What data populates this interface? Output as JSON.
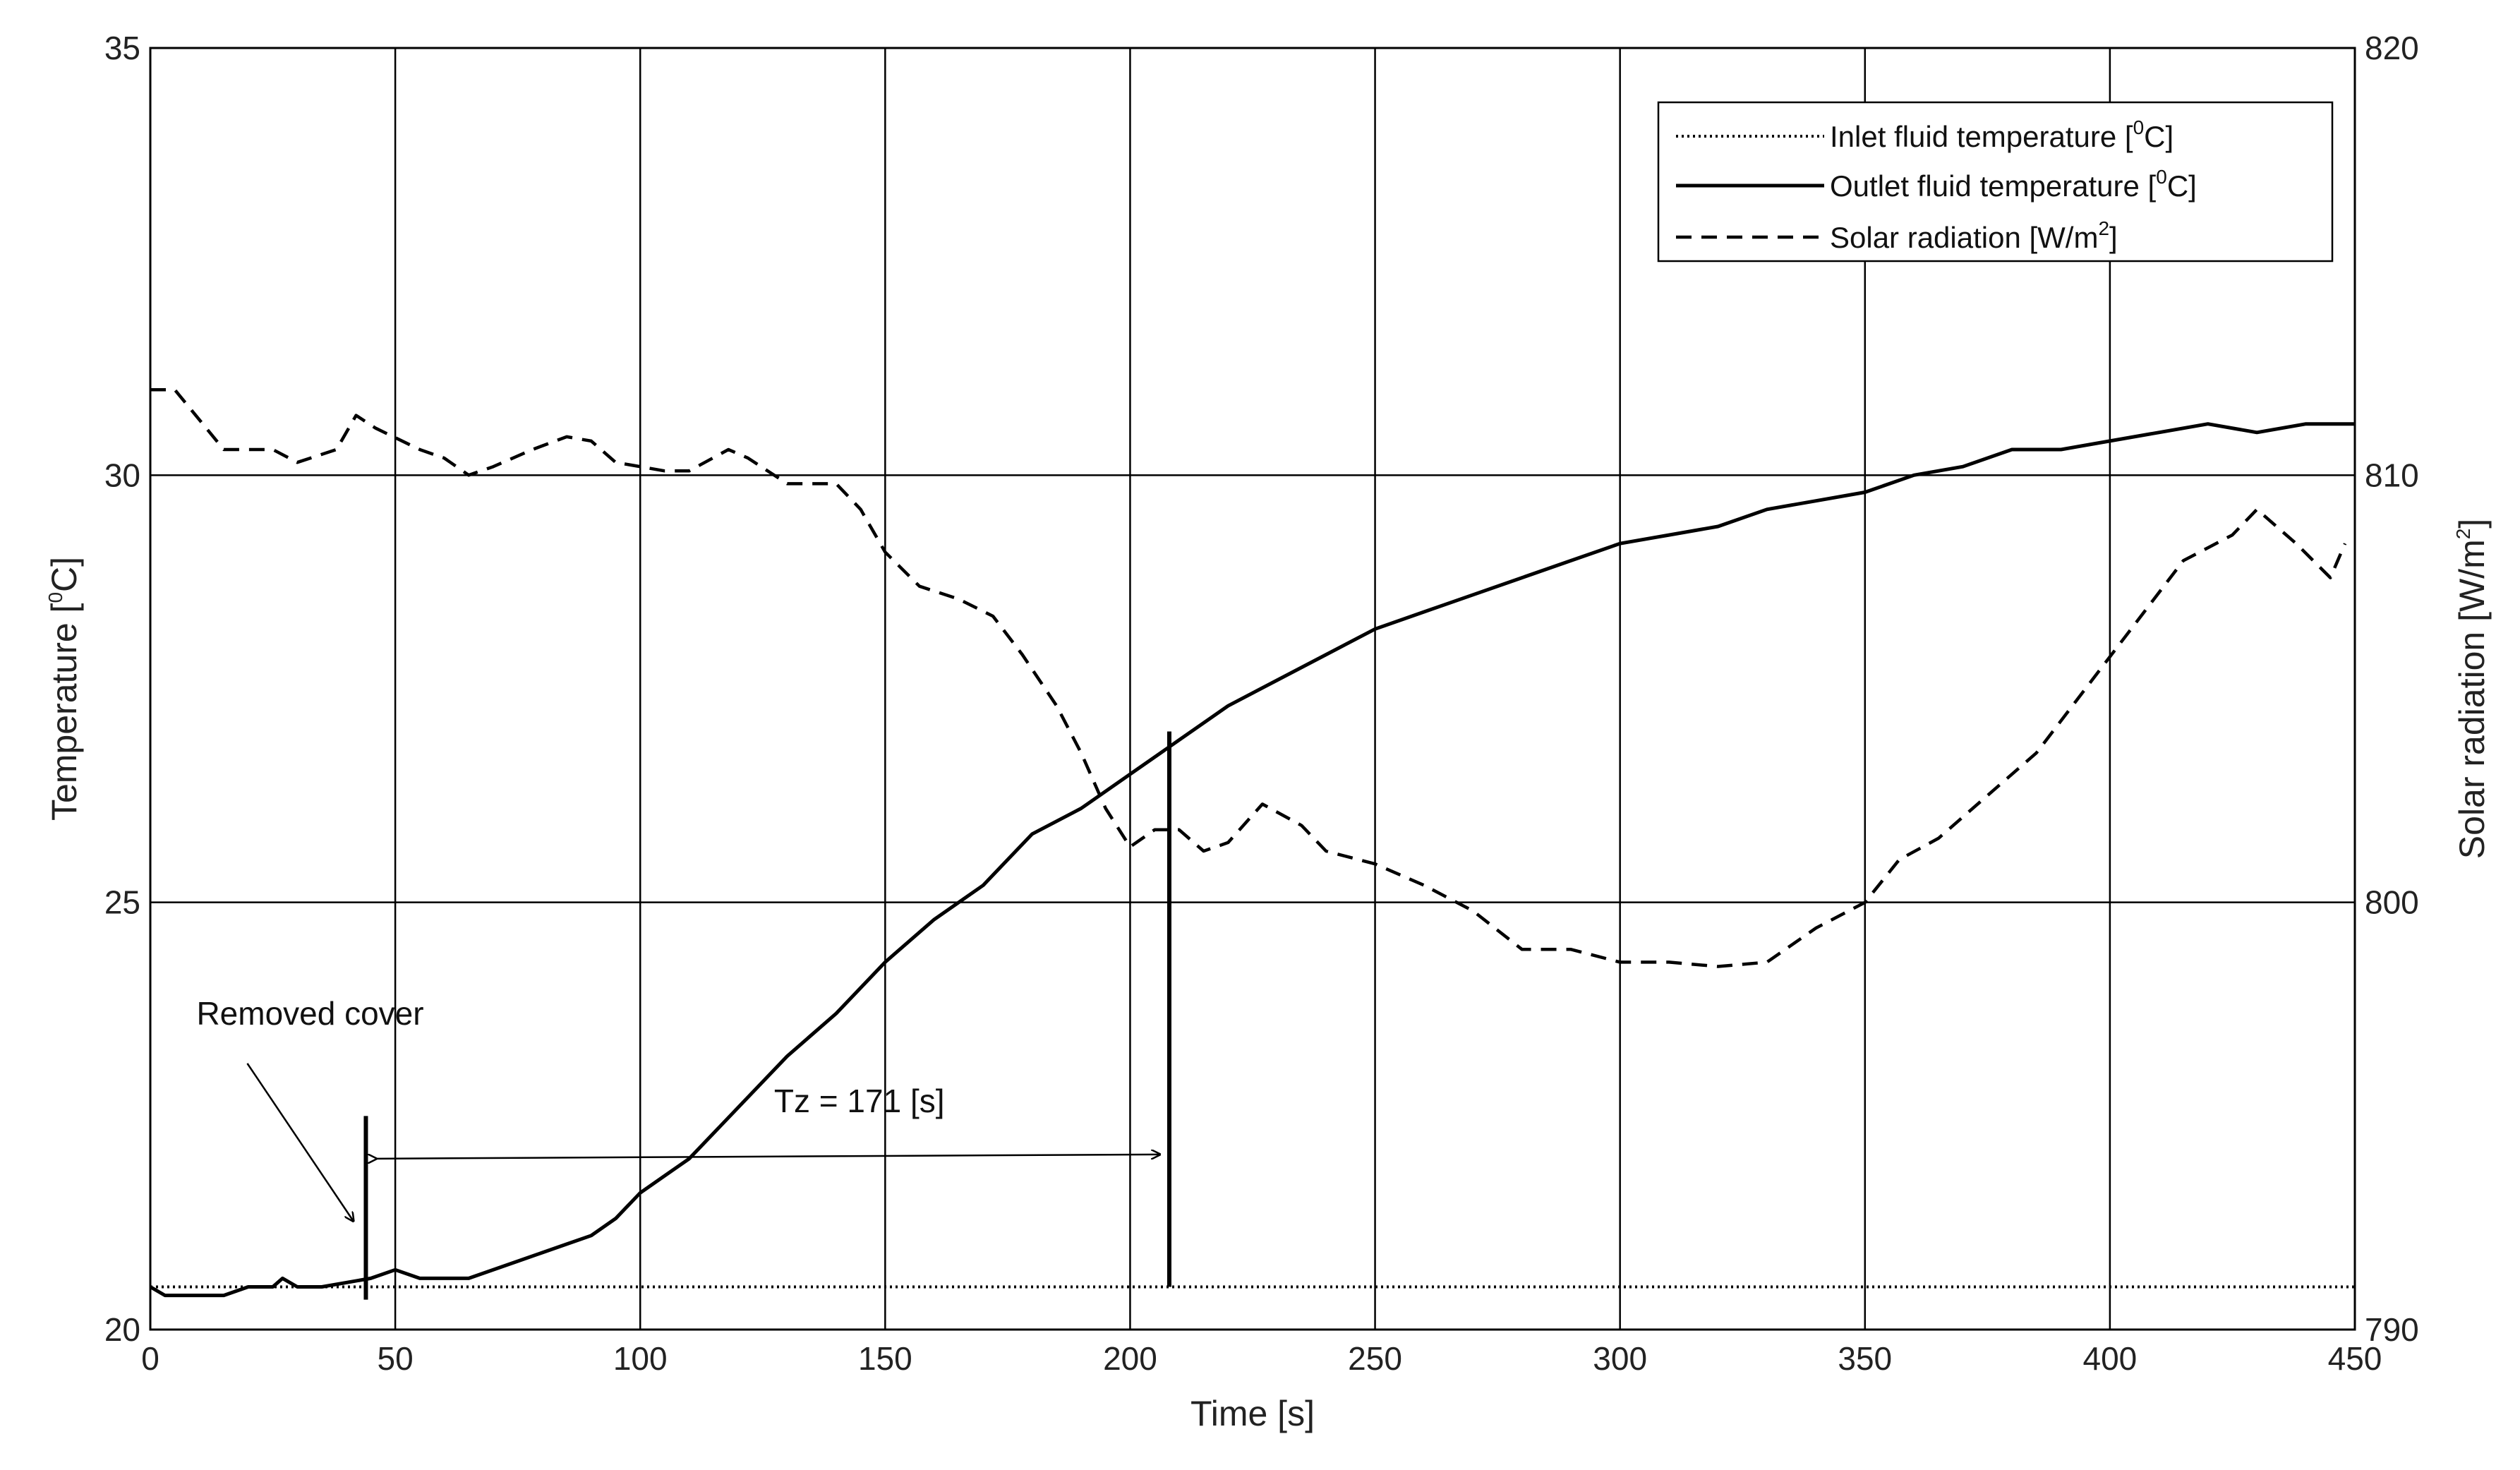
{
  "chart_data": {
    "type": "line",
    "xlabel": "Time [s]",
    "ylabel": {
      "pre": "Temperature [",
      "sup": "0",
      "post": "C]"
    },
    "y2label": {
      "pre": "Solar radiation [W/m",
      "sup": "2",
      "post": "]"
    },
    "xlim": [
      0,
      450
    ],
    "ylim": [
      20,
      35
    ],
    "y2lim": [
      790,
      820
    ],
    "xticks": [
      "0",
      "50",
      "100",
      "150",
      "200",
      "250",
      "300",
      "350",
      "400",
      "450"
    ],
    "yticks": [
      "20",
      "25",
      "30",
      "35"
    ],
    "y2ticks": [
      "790",
      "800",
      "810",
      "820"
    ],
    "grid": true,
    "legend_position": "top-right",
    "series": [
      {
        "name": "Inlet fluid temperature",
        "legend": {
          "pre": "Inlet fluid temperature [",
          "sup": "0",
          "post": "C]"
        },
        "axis": "left",
        "style": "dotted",
        "x": [
          0,
          450
        ],
        "y": [
          20.5,
          20.5
        ]
      },
      {
        "name": "Outlet fluid temperature",
        "legend": {
          "pre": "Outlet fluid temperature [",
          "sup": "0",
          "post": "C]"
        },
        "axis": "left",
        "style": "solid",
        "x": [
          0,
          3,
          15,
          20,
          25,
          27,
          30,
          35,
          45,
          50,
          55,
          65,
          75,
          80,
          85,
          90,
          95,
          100,
          105,
          110,
          120,
          130,
          140,
          150,
          160,
          170,
          180,
          190,
          200,
          210,
          220,
          230,
          240,
          250,
          260,
          270,
          280,
          290,
          300,
          310,
          320,
          330,
          340,
          350,
          360,
          370,
          380,
          390,
          400,
          410,
          420,
          430,
          440,
          450
        ],
        "y": [
          20.5,
          20.4,
          20.4,
          20.5,
          20.5,
          20.6,
          20.5,
          20.5,
          20.6,
          20.7,
          20.6,
          20.6,
          20.8,
          20.9,
          21.0,
          21.1,
          21.3,
          21.6,
          21.8,
          22.0,
          22.6,
          23.2,
          23.7,
          24.3,
          24.8,
          25.2,
          25.8,
          26.1,
          26.5,
          26.9,
          27.3,
          27.6,
          27.9,
          28.2,
          28.4,
          28.6,
          28.8,
          29.0,
          29.2,
          29.3,
          29.4,
          29.6,
          29.7,
          29.8,
          30.0,
          30.1,
          30.3,
          30.3,
          30.4,
          30.5,
          30.6,
          30.5,
          30.6,
          30.6
        ],
        "units": "degC"
      },
      {
        "name": "Solar radiation",
        "legend": {
          "pre": "Solar radiation [W/m",
          "sup": "2",
          "post": "]"
        },
        "axis": "right",
        "style": "dashed",
        "x": [
          0,
          5,
          15,
          25,
          30,
          38,
          42,
          46,
          55,
          60,
          65,
          70,
          78,
          85,
          90,
          95,
          100,
          105,
          110,
          118,
          122,
          130,
          140,
          145,
          150,
          157,
          165,
          172,
          178,
          185,
          190,
          195,
          200,
          205,
          210,
          215,
          220,
          227,
          235,
          240,
          250,
          260,
          265,
          270,
          280,
          290,
          300,
          310,
          320,
          330,
          340,
          350,
          357,
          365,
          375,
          385,
          395,
          405,
          415,
          425,
          430,
          438,
          445,
          448
        ],
        "y": [
          812,
          812,
          810.6,
          810.6,
          810.3,
          810.6,
          811.4,
          811.1,
          810.6,
          810.4,
          810,
          810.2,
          810.6,
          810.9,
          810.8,
          810.3,
          810.2,
          810.1,
          810.1,
          810.6,
          810.4,
          809.8,
          809.8,
          809.2,
          808.2,
          807.4,
          807.1,
          806.7,
          805.8,
          804.6,
          803.5,
          802.2,
          801.3,
          801.7,
          801.7,
          801.2,
          801.4,
          802.3,
          801.8,
          801.2,
          800.9,
          800.4,
          800.1,
          799.8,
          798.9,
          798.9,
          798.6,
          798.6,
          798.5,
          798.6,
          799.4,
          800.0,
          801.0,
          801.5,
          802.5,
          803.5,
          805.0,
          806.5,
          808.0,
          808.6,
          809.2,
          808.4,
          807.6,
          808.4
        ],
        "units": "W/m2"
      }
    ],
    "annotations": [
      {
        "text": "Removed cover",
        "x": 44,
        "y": 22.0
      },
      {
        "text": "Tz = 171 [s]",
        "x_start": 44,
        "x_end": 208,
        "y": 22.0
      }
    ],
    "markers": [
      {
        "x": 44,
        "y_from": 20.35,
        "y_to": 22.5
      },
      {
        "x": 208,
        "y_from": 20.5,
        "y_to": 27.0
      }
    ]
  }
}
